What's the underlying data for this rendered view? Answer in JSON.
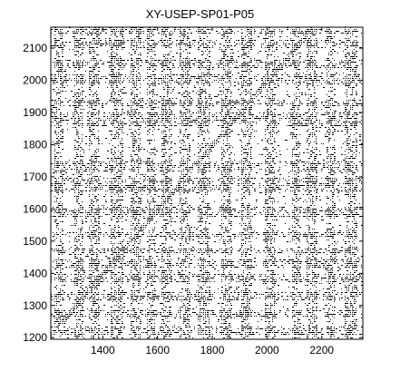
{
  "chart_data": {
    "type": "heatmap",
    "title": "XY-USEP-SP01-P05",
    "xlabel": "",
    "ylabel": "",
    "xlim": [
      1210,
      2350
    ],
    "ylim": [
      1195,
      2165
    ],
    "x_ticks": [
      1400,
      1600,
      1800,
      2000,
      2200
    ],
    "y_ticks": [
      1200,
      1300,
      1400,
      1500,
      1600,
      1700,
      1800,
      1900,
      2000,
      2100
    ],
    "x_tick_labels": [
      "1400",
      "1600",
      "1800",
      "2000",
      "2200"
    ],
    "y_tick_labels": [
      "1200",
      "1300",
      "1400",
      "1500",
      "1600",
      "1700",
      "1800",
      "1900",
      "2000",
      "2100"
    ],
    "grid": false,
    "colors": {
      "marks": "#000000",
      "background": "#ffffff",
      "axes": "#000000"
    },
    "dense_x_bands": [
      [
        1220,
        1255
      ],
      [
        1290,
        1325
      ],
      [
        1345,
        1385
      ],
      [
        1425,
        1470
      ],
      [
        1500,
        1540
      ],
      [
        1560,
        1590
      ],
      [
        1610,
        1650
      ],
      [
        1680,
        1720
      ],
      [
        1745,
        1790
      ],
      [
        1830,
        1870
      ],
      [
        1900,
        1940
      ],
      [
        1990,
        2030
      ],
      [
        2090,
        2120
      ],
      [
        2140,
        2180
      ],
      [
        2215,
        2250
      ],
      [
        2280,
        2330
      ]
    ],
    "dense_y_bands": [
      [
        1210,
        1240
      ],
      [
        1265,
        1290
      ],
      [
        1315,
        1345
      ],
      [
        1375,
        1400
      ],
      [
        1420,
        1445
      ],
      [
        1465,
        1480
      ],
      [
        1515,
        1530
      ],
      [
        1575,
        1610
      ],
      [
        1655,
        1700
      ],
      [
        1715,
        1750
      ],
      [
        1855,
        1900
      ],
      [
        1920,
        1945
      ],
      [
        1985,
        2020
      ],
      [
        2040,
        2065
      ],
      [
        2100,
        2130
      ],
      [
        2145,
        2160
      ]
    ]
  }
}
